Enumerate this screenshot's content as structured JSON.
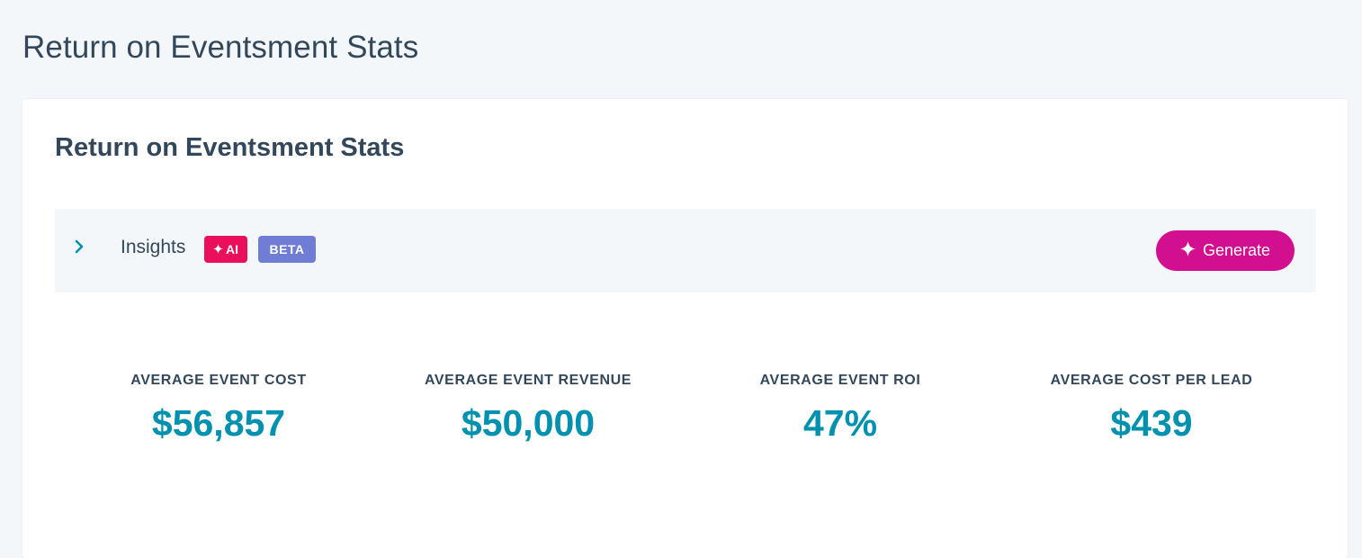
{
  "page": {
    "title": "Return on Eventsment Stats"
  },
  "card": {
    "title": "Return on Eventsment Stats",
    "insights": {
      "chevron_icon": "chevron-right-icon",
      "label": "Insights",
      "ai_badge": "AI",
      "ai_badge_icon": "sparkle-icon",
      "beta_badge": "BETA",
      "generate_label": "Generate",
      "generate_icon": "sparkle-icon"
    },
    "stats": [
      {
        "label": "AVERAGE EVENT COST",
        "value": "$56,857"
      },
      {
        "label": "AVERAGE EVENT REVENUE",
        "value": "$50,000"
      },
      {
        "label": "AVERAGE EVENT ROI",
        "value": "47%"
      },
      {
        "label": "AVERAGE COST PER LEAD",
        "value": "$439"
      }
    ]
  },
  "colors": {
    "accent": "#0091ae",
    "ai_badge": "#ea0f5b",
    "beta_badge": "#6f7dd5",
    "generate_button": "#d20f8f",
    "text": "#33475b",
    "background": "#f4f7fa"
  }
}
